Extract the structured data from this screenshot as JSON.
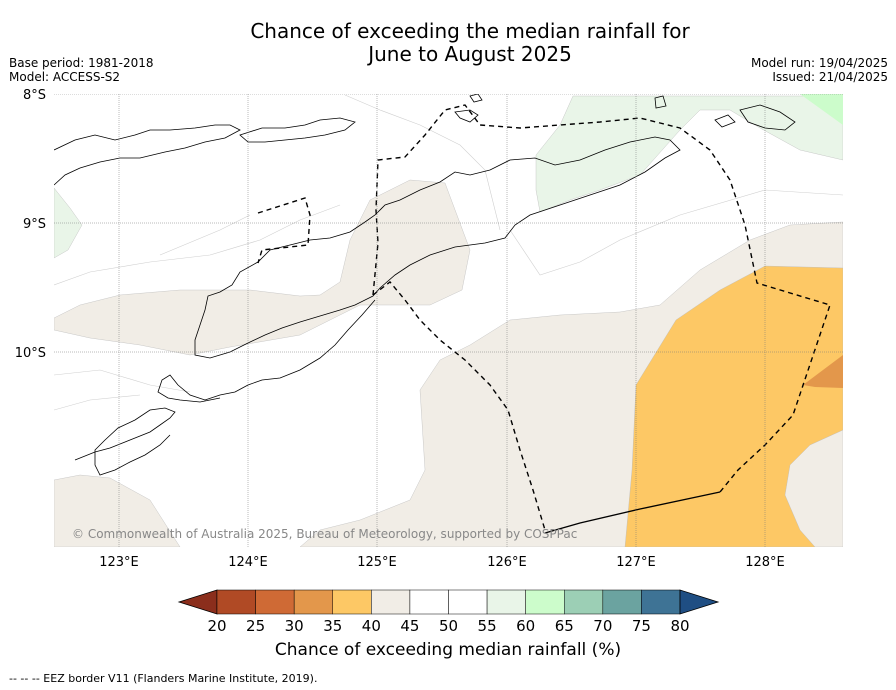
{
  "header": {
    "title_line1": "Chance of exceeding the median rainfall for",
    "title_line2": "June to August 2025",
    "base_period": "Base period: 1981-2018",
    "model": "Model: ACCESS-S2",
    "model_run": "Model run: 19/04/2025",
    "issued": "Issued: 21/04/2025"
  },
  "map": {
    "lat_labels": [
      "8°S",
      "9°S",
      "10°S"
    ],
    "lon_labels": [
      "123°E",
      "124°E",
      "125°E",
      "126°E",
      "127°E",
      "128°E"
    ],
    "copyright": "© Commonwealth of Australia 2025, Bureau of Meteorology, supported by COSPPac"
  },
  "colorbar": {
    "ticks": [
      "20",
      "25",
      "30",
      "35",
      "40",
      "45",
      "50",
      "55",
      "60",
      "65",
      "70",
      "75",
      "80"
    ],
    "colors": [
      "#b04a25",
      "#cf6a35",
      "#e3974b",
      "#fdc865",
      "#f1ede6",
      "#ffffff",
      "#ffffff",
      "#e9f5e8",
      "#ccfccb",
      "#9ccfb5",
      "#6ba3a0",
      "#3e7395",
      "#1f4e83"
    ],
    "low_extend_color": "#8b2e1c",
    "title": "Chance of exceeding median rainfall (%)"
  },
  "footnote": "--  --  -- EEZ border V11 (Flanders Marine Institute, 2019)."
}
